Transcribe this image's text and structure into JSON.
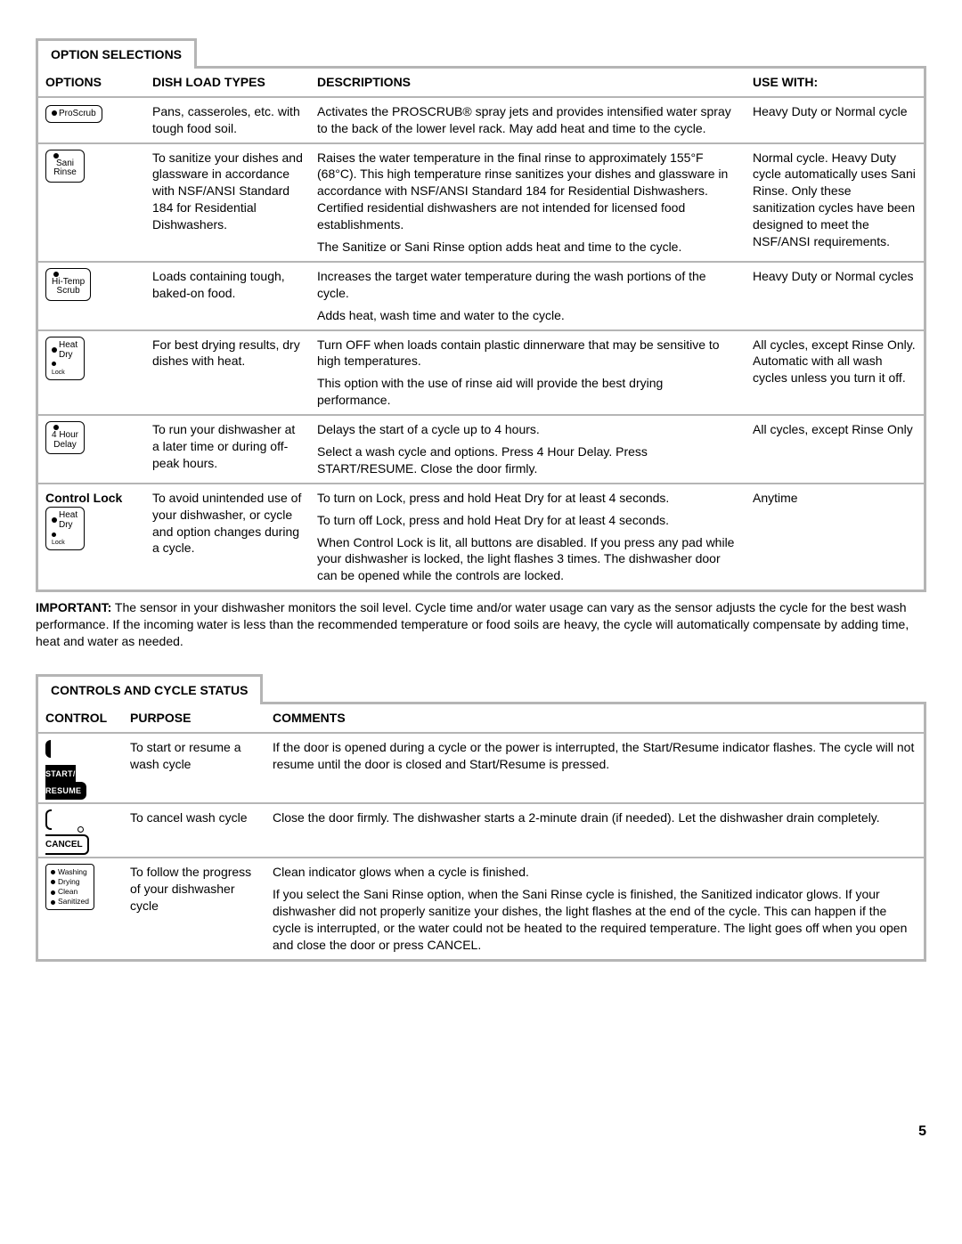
{
  "page_number": "5",
  "option_selections": {
    "tab_label": "OPTION SELECTIONS",
    "headers": {
      "options": "OPTIONS",
      "dish": "DISH LOAD TYPES",
      "desc": "DESCRIPTIONS",
      "use": "USE WITH:"
    },
    "rows": [
      {
        "button": "proscrub",
        "button_label": "ProScrub",
        "dish": "Pans, casseroles, etc. with tough food soil.",
        "desc": [
          "Activates the PROSCRUB® spray jets and provides intensified water spray to the back of the lower level rack. May add heat and time to the cycle."
        ],
        "use": "Heavy Duty or Normal cycle"
      },
      {
        "button": "sani",
        "button_label": "Sani Rinse",
        "dish": "To sanitize your dishes and glassware in accordance with NSF/ANSI Standard 184 for Residential Dishwashers.",
        "desc": [
          "Raises the water temperature in the final rinse to approximately 155°F (68°C). This high temperature rinse sanitizes your dishes and glassware in accordance with NSF/ANSI Standard 184 for Residential Dishwashers. Certified residential dishwashers are not intended for licensed food establishments.",
          "The Sanitize or Sani Rinse option adds heat and time to the cycle."
        ],
        "use": "Normal cycle. Heavy Duty cycle automatically uses Sani Rinse. Only these sanitization cycles have been designed to meet the NSF/ANSI requirements."
      },
      {
        "button": "hitemp",
        "button_label": "Hi-Temp Scrub",
        "dish": "Loads containing tough, baked-on food.",
        "desc": [
          "Increases the target water temperature during the wash portions of the cycle.",
          "Adds heat, wash time and water to the cycle."
        ],
        "use": "Heavy Duty or Normal cycles"
      },
      {
        "button": "heatdry",
        "button_label": "Heat Dry",
        "button_sub": "Lock",
        "dish": "For best drying results, dry dishes with heat.",
        "desc": [
          "Turn OFF when loads contain plastic dinnerware that may be sensitive to high temperatures.",
          "This option with the use of rinse aid will provide the best drying performance."
        ],
        "use": "All cycles, except Rinse Only. Automatic with all wash cycles unless you turn it off."
      },
      {
        "button": "4hour",
        "button_label": "4 Hour Delay",
        "dish": "To run your dishwasher at a later time or during off-peak hours.",
        "desc": [
          "Delays the start of a cycle up to 4 hours.",
          "Select a wash cycle and options. Press 4 Hour Delay. Press START/RESUME. Close the door firmly."
        ],
        "use": "All cycles, except Rinse Only"
      },
      {
        "button": "ctrllock",
        "title": "Control Lock",
        "button_label": "Heat Dry",
        "button_sub": "Lock",
        "dish": "To avoid unintended use of your dishwasher, or cycle and option changes during a cycle.",
        "desc": [
          "To turn on Lock, press and hold Heat Dry for at least 4 seconds.",
          "To turn off Lock, press and hold Heat Dry for at least 4 seconds.",
          "When Control Lock is lit, all buttons are disabled. If you press any pad while your dishwasher is locked, the light flashes 3 times. The dishwasher door can be opened while the controls are locked."
        ],
        "use": "Anytime"
      }
    ]
  },
  "important_label": "IMPORTANT:",
  "important_text": " The sensor in your dishwasher monitors the soil level. Cycle time and/or water usage can vary as the sensor adjusts the cycle for the best wash performance. If the incoming water is less than the recommended temperature or food soils are heavy, the cycle will automatically compensate by adding time, heat and water as needed.",
  "controls_status": {
    "tab_label": "CONTROLS AND CYCLE STATUS",
    "headers": {
      "control": "CONTROL",
      "purpose": "PURPOSE",
      "comments": "COMMENTS"
    },
    "rows": [
      {
        "button": "start",
        "button_label": "START/ RESUME",
        "purpose": "To start or resume a wash cycle",
        "comments": [
          "If the door is opened during a cycle or the power is interrupted, the Start/Resume indicator flashes. The cycle will not resume until the door is closed and Start/Resume is pressed."
        ]
      },
      {
        "button": "cancel",
        "button_label": "CANCEL",
        "purpose": "To cancel wash cycle",
        "comments": [
          "Close the door firmly. The dishwasher starts a 2-minute drain (if needed). Let the dishwasher drain completely."
        ]
      },
      {
        "button": "status",
        "status_items": [
          "Washing",
          "Drying",
          "Clean",
          "Sanitized"
        ],
        "purpose": "To follow the progress of your dishwasher cycle",
        "comments": [
          "Clean indicator glows when a cycle is finished.",
          "If you select the Sani Rinse option, when the Sani Rinse cycle is finished, the Sanitized indicator glows. If your dishwasher did not properly sanitize your dishes, the light flashes at the end of the cycle. This can happen if the cycle is interrupted, or the water could not be heated to the required temperature. The light goes off when you open and close the door or press CANCEL."
        ]
      }
    ]
  }
}
